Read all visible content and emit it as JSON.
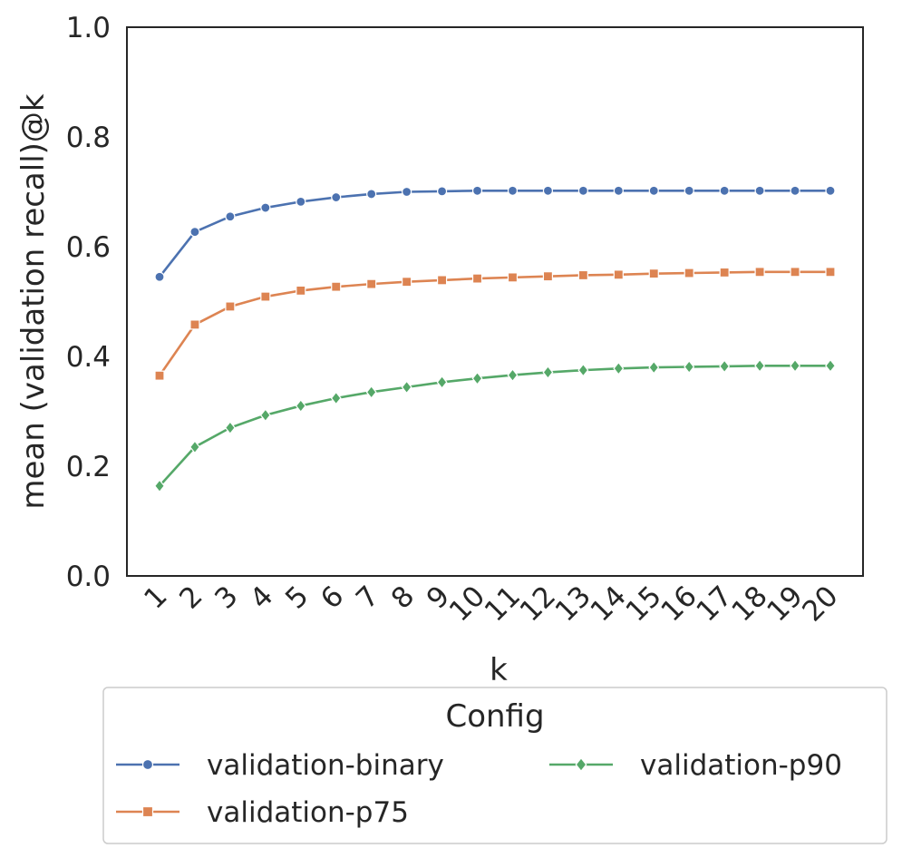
{
  "chart_data": {
    "type": "line",
    "title": "",
    "xlabel": "k",
    "ylabel": "mean (validation recall)@k",
    "ylim": [
      0,
      1.0
    ],
    "yticks": [
      "0.0",
      "0.2",
      "0.4",
      "0.6",
      "0.8",
      "1.0"
    ],
    "categories": [
      "1",
      "2",
      "3",
      "4",
      "5",
      "6",
      "7",
      "8",
      "9",
      "10",
      "11",
      "12",
      "13",
      "14",
      "15",
      "16",
      "17",
      "18",
      "19",
      "20"
    ],
    "grid": false,
    "legend": {
      "title": "Config",
      "placement": "below"
    },
    "series": [
      {
        "name": "validation-binary",
        "color": "#4c72b0",
        "marker": "circle",
        "values": [
          0.545,
          0.627,
          0.655,
          0.671,
          0.682,
          0.69,
          0.696,
          0.7,
          0.701,
          0.702,
          0.702,
          0.702,
          0.702,
          0.702,
          0.702,
          0.702,
          0.702,
          0.702,
          0.702,
          0.702
        ]
      },
      {
        "name": "validation-p75",
        "color": "#dd8452",
        "marker": "square",
        "values": [
          0.365,
          0.458,
          0.491,
          0.509,
          0.52,
          0.527,
          0.532,
          0.536,
          0.539,
          0.542,
          0.544,
          0.546,
          0.548,
          0.549,
          0.551,
          0.552,
          0.553,
          0.554,
          0.554,
          0.554
        ]
      },
      {
        "name": "validation-p90",
        "color": "#55a868",
        "marker": "diamond",
        "values": [
          0.164,
          0.235,
          0.27,
          0.293,
          0.31,
          0.324,
          0.335,
          0.344,
          0.353,
          0.36,
          0.366,
          0.371,
          0.375,
          0.378,
          0.38,
          0.381,
          0.382,
          0.383,
          0.383,
          0.383
        ]
      }
    ]
  }
}
